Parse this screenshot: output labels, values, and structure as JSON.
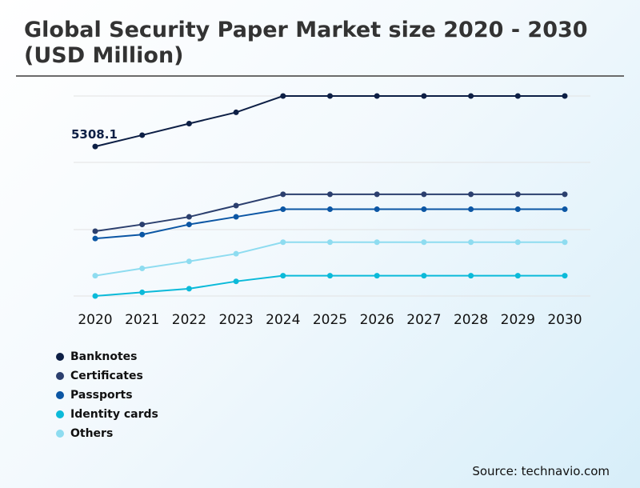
{
  "title": "Global Security Paper Market size 2020 - 2030 (USD Million)",
  "source": "Source: technavio.com",
  "colors": {
    "banknotes": "#0d1f45",
    "certificates": "#2b3f6e",
    "passports": "#0b56a4",
    "identity_cards": "#0bbad9",
    "others": "#8edcf0",
    "gridline": "#e2e2e2"
  },
  "chart_data": {
    "type": "line",
    "title": "Global Security Paper Market size 2020 - 2030 (USD Million)",
    "xlabel": "",
    "ylabel": "",
    "categories": [
      "2020",
      "2021",
      "2022",
      "2023",
      "2024",
      "2025",
      "2026",
      "2027",
      "2028",
      "2029",
      "2030"
    ],
    "grid": true,
    "legend_position": "bottom-left",
    "y_axis_labels_shown": false,
    "series": [
      {
        "name": "Banknotes",
        "color": "#0d1f45",
        "values": [
          5308.1,
          5710,
          6120,
          6520,
          7100,
          7100,
          7100,
          7100,
          7100,
          7100,
          7100
        ]
      },
      {
        "name": "Certificates",
        "color": "#2b3f6e",
        "values": [
          2300,
          2540,
          2810,
          3210,
          3610,
          3610,
          3610,
          3610,
          3610,
          3610,
          3610
        ]
      },
      {
        "name": "Passports",
        "color": "#0b56a4",
        "values": [
          2040,
          2180,
          2540,
          2810,
          3080,
          3080,
          3080,
          3080,
          3080,
          3080,
          3080
        ]
      },
      {
        "name": "Identity cards",
        "color": "#0bbad9",
        "values": [
          0,
          130,
          260,
          520,
          720,
          720,
          720,
          720,
          720,
          720,
          720
        ]
      },
      {
        "name": "Others",
        "color": "#8edcf0",
        "values": [
          720,
          980,
          1230,
          1500,
          1910,
          1910,
          1910,
          1910,
          1910,
          1910,
          1910
        ]
      }
    ],
    "data_labels": [
      {
        "series": "Banknotes",
        "category": "2020",
        "text": "5308.1"
      }
    ]
  }
}
